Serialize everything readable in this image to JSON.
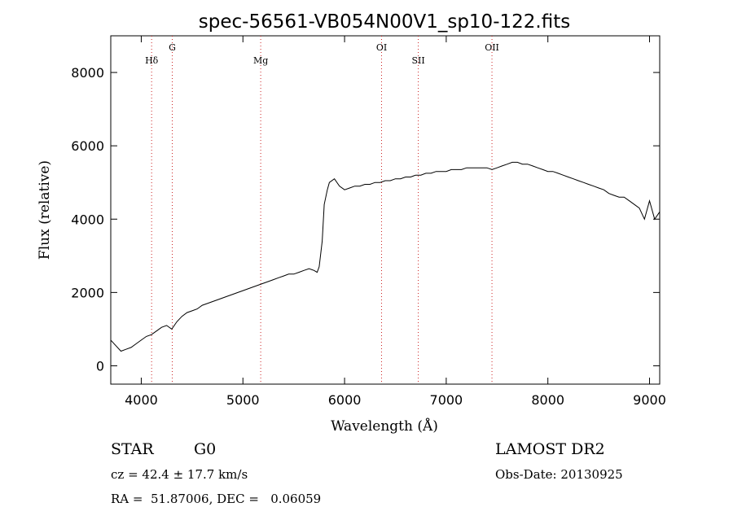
{
  "chart_data": {
    "type": "line",
    "title": "spec-56561-VB054N00V1_sp10-122.fits",
    "xlabel": "Wavelength (Å)",
    "ylabel": "Flux (relative)",
    "xlim": [
      3700,
      9100
    ],
    "ylim": [
      -500,
      9000
    ],
    "x_ticks": [
      4000,
      5000,
      6000,
      7000,
      8000,
      9000
    ],
    "y_ticks": [
      0,
      2000,
      4000,
      6000,
      8000
    ],
    "grid": false,
    "spectral_lines": [
      {
        "name": "Hδ",
        "wavelength": 4102
      },
      {
        "name": "G",
        "wavelength": 4305
      },
      {
        "name": "Mg",
        "wavelength": 5175
      },
      {
        "name": "OI",
        "wavelength": 6364
      },
      {
        "name": "SII",
        "wavelength": 6725
      },
      {
        "name": "OII",
        "wavelength": 7450
      }
    ],
    "series": [
      {
        "color": "#000000",
        "points": [
          [
            3700,
            700
          ],
          [
            3750,
            550
          ],
          [
            3800,
            400
          ],
          [
            3850,
            450
          ],
          [
            3900,
            500
          ],
          [
            3950,
            600
          ],
          [
            4000,
            700
          ],
          [
            4050,
            800
          ],
          [
            4100,
            850
          ],
          [
            4150,
            950
          ],
          [
            4200,
            1050
          ],
          [
            4250,
            1100
          ],
          [
            4300,
            1000
          ],
          [
            4350,
            1200
          ],
          [
            4400,
            1350
          ],
          [
            4450,
            1450
          ],
          [
            4500,
            1500
          ],
          [
            4550,
            1550
          ],
          [
            4600,
            1650
          ],
          [
            4650,
            1700
          ],
          [
            4700,
            1750
          ],
          [
            4750,
            1800
          ],
          [
            4800,
            1850
          ],
          [
            4850,
            1900
          ],
          [
            4900,
            1950
          ],
          [
            4950,
            2000
          ],
          [
            5000,
            2050
          ],
          [
            5050,
            2100
          ],
          [
            5100,
            2150
          ],
          [
            5150,
            2200
          ],
          [
            5200,
            2250
          ],
          [
            5250,
            2300
          ],
          [
            5300,
            2350
          ],
          [
            5350,
            2400
          ],
          [
            5400,
            2450
          ],
          [
            5450,
            2500
          ],
          [
            5500,
            2500
          ],
          [
            5550,
            2550
          ],
          [
            5600,
            2600
          ],
          [
            5650,
            2650
          ],
          [
            5700,
            2600
          ],
          [
            5730,
            2550
          ],
          [
            5750,
            2700
          ],
          [
            5780,
            3400
          ],
          [
            5800,
            4400
          ],
          [
            5830,
            4800
          ],
          [
            5850,
            5000
          ],
          [
            5900,
            5100
          ],
          [
            5950,
            4900
          ],
          [
            6000,
            4800
          ],
          [
            6050,
            4850
          ],
          [
            6100,
            4900
          ],
          [
            6150,
            4900
          ],
          [
            6200,
            4950
          ],
          [
            6250,
            4950
          ],
          [
            6300,
            5000
          ],
          [
            6350,
            5000
          ],
          [
            6400,
            5050
          ],
          [
            6450,
            5050
          ],
          [
            6500,
            5100
          ],
          [
            6550,
            5100
          ],
          [
            6600,
            5150
          ],
          [
            6650,
            5150
          ],
          [
            6700,
            5200
          ],
          [
            6750,
            5200
          ],
          [
            6800,
            5250
          ],
          [
            6850,
            5250
          ],
          [
            6900,
            5300
          ],
          [
            6950,
            5300
          ],
          [
            7000,
            5300
          ],
          [
            7050,
            5350
          ],
          [
            7100,
            5350
          ],
          [
            7150,
            5350
          ],
          [
            7200,
            5400
          ],
          [
            7250,
            5400
          ],
          [
            7300,
            5400
          ],
          [
            7350,
            5400
          ],
          [
            7400,
            5400
          ],
          [
            7450,
            5350
          ],
          [
            7500,
            5400
          ],
          [
            7550,
            5450
          ],
          [
            7600,
            5500
          ],
          [
            7650,
            5550
          ],
          [
            7700,
            5550
          ],
          [
            7750,
            5500
          ],
          [
            7800,
            5500
          ],
          [
            7850,
            5450
          ],
          [
            7900,
            5400
          ],
          [
            7950,
            5350
          ],
          [
            8000,
            5300
          ],
          [
            8050,
            5300
          ],
          [
            8100,
            5250
          ],
          [
            8150,
            5200
          ],
          [
            8200,
            5150
          ],
          [
            8250,
            5100
          ],
          [
            8300,
            5050
          ],
          [
            8350,
            5000
          ],
          [
            8400,
            4950
          ],
          [
            8450,
            4900
          ],
          [
            8500,
            4850
          ],
          [
            8550,
            4800
          ],
          [
            8600,
            4700
          ],
          [
            8650,
            4650
          ],
          [
            8700,
            4600
          ],
          [
            8750,
            4600
          ],
          [
            8800,
            4500
          ],
          [
            8850,
            4400
          ],
          [
            8900,
            4300
          ],
          [
            8950,
            4000
          ],
          [
            9000,
            4500
          ],
          [
            9050,
            4000
          ],
          [
            9100,
            4200
          ]
        ]
      }
    ]
  },
  "info": {
    "object_class": "STAR",
    "subclass": "G0",
    "survey": "LAMOST DR2",
    "redshift_line": "cz = 42.4 ± 17.7 km/s",
    "obs_date_line": "Obs-Date: 20130925",
    "coords_line": "RA =  51.87006, DEC =   0.06059"
  }
}
